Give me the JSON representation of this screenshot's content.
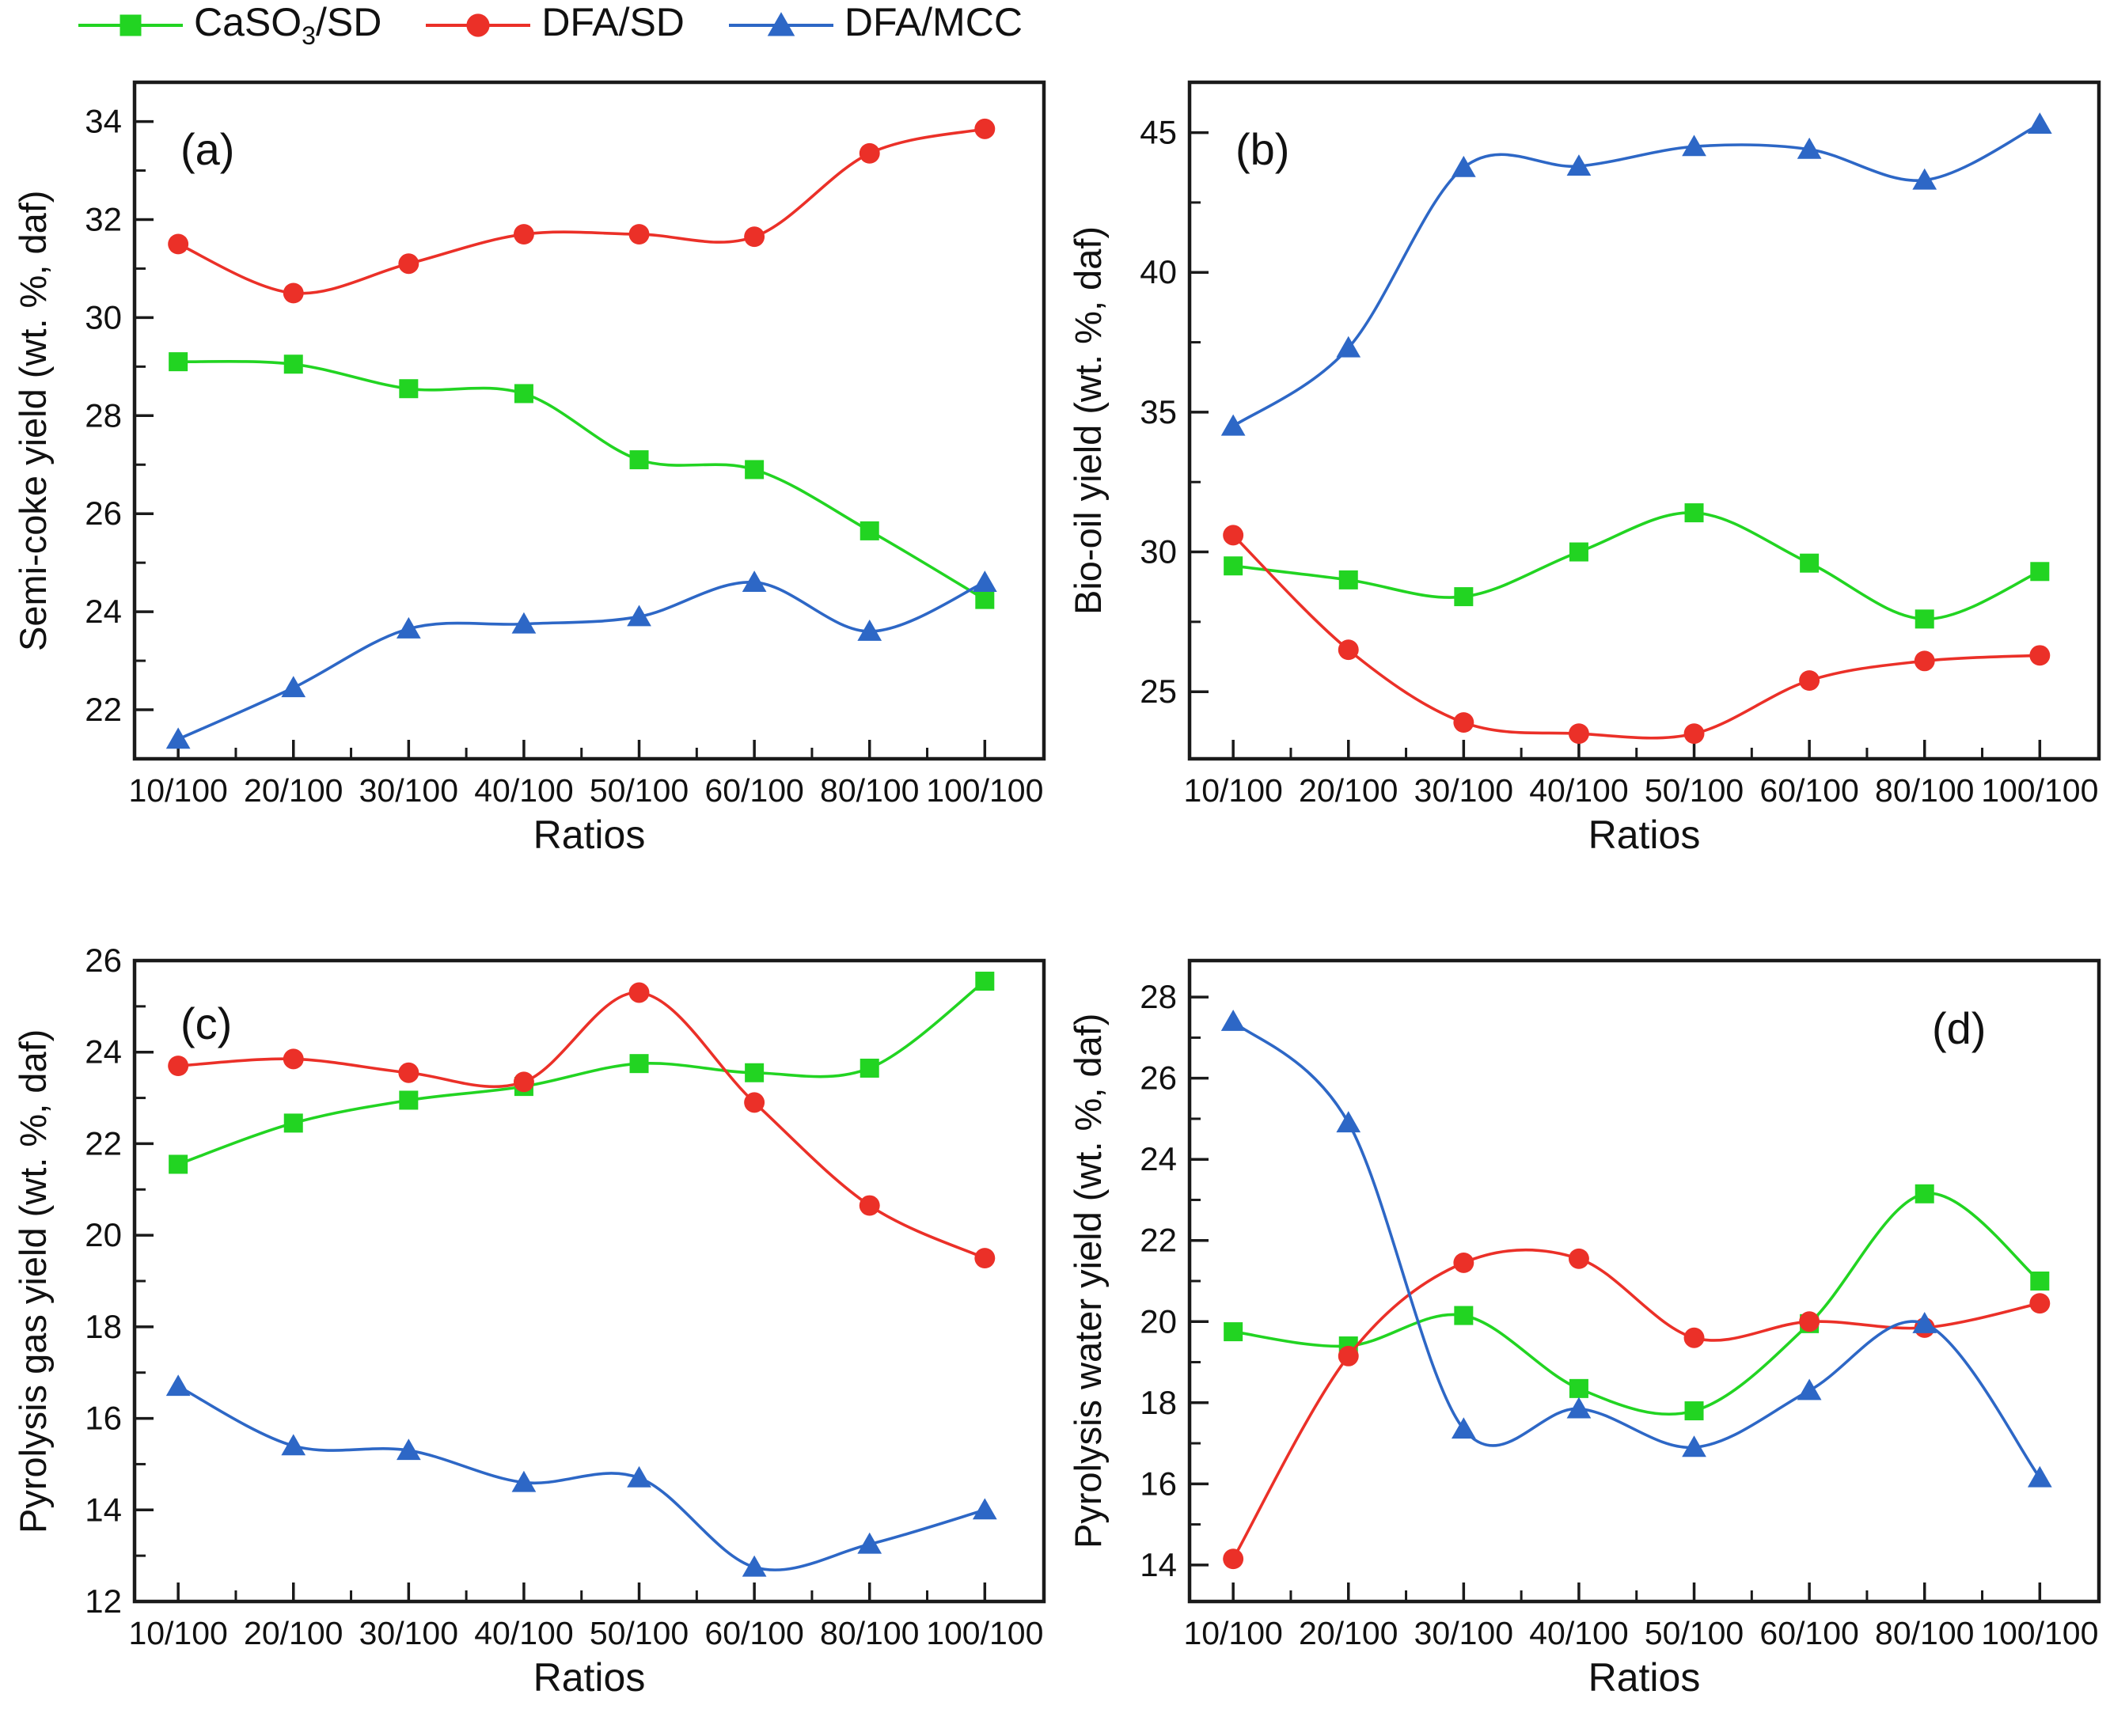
{
  "figure": {
    "background": "#ffffff",
    "frame_color": "#1a1a1a"
  },
  "legend": {
    "position": "top-left",
    "items": [
      {
        "label_pre": "CaSO",
        "label_sub": "3",
        "label_post": "/SD",
        "name": "CaSO3/SD",
        "color": "#22d422",
        "marker": "square"
      },
      {
        "label_pre": "DFA/SD",
        "label_sub": "",
        "label_post": "",
        "name": "DFA/SD",
        "color": "#eb3028",
        "marker": "circle"
      },
      {
        "label_pre": "DFA/MCC",
        "label_sub": "",
        "label_post": "",
        "name": "DFA/MCC",
        "color": "#2d67c6",
        "marker": "triangle"
      }
    ]
  },
  "chart_data": [
    {
      "type": "line",
      "panel_label": "(a)",
      "panel_label_pos": "top-left",
      "ylabel": "Semi-coke yield (wt. %, daf)",
      "xlabel": "Ratios",
      "categories": [
        "10/100",
        "20/100",
        "30/100",
        "40/100",
        "50/100",
        "60/100",
        "80/100",
        "100/100"
      ],
      "ylim": [
        21.0,
        34.8
      ],
      "yticks": {
        "min": 22,
        "max": 34,
        "step": 2
      },
      "grid": false,
      "series": [
        {
          "name": "CaSO3/SD",
          "marker": "square",
          "color": "#22d422",
          "values": [
            29.1,
            29.05,
            28.55,
            28.45,
            27.1,
            26.9,
            25.65,
            24.25
          ]
        },
        {
          "name": "DFA/SD",
          "marker": "circle",
          "color": "#eb3028",
          "values": [
            31.5,
            30.5,
            31.1,
            31.7,
            31.7,
            31.65,
            33.35,
            33.85
          ]
        },
        {
          "name": "DFA/MCC",
          "marker": "triangle",
          "color": "#2d67c6",
          "values": [
            21.4,
            22.45,
            23.65,
            23.75,
            23.9,
            24.6,
            23.6,
            24.6
          ]
        }
      ]
    },
    {
      "type": "line",
      "panel_label": "(b)",
      "panel_label_pos": "top-left",
      "ylabel": "Bio-oil yield (wt. %, daf)",
      "xlabel": "Ratios",
      "categories": [
        "10/100",
        "20/100",
        "30/100",
        "40/100",
        "50/100",
        "60/100",
        "80/100",
        "100/100"
      ],
      "ylim": [
        22.6,
        46.8
      ],
      "yticks": {
        "min": 25,
        "max": 45,
        "step": 5
      },
      "grid": false,
      "series": [
        {
          "name": "CaSO3/SD",
          "marker": "square",
          "color": "#22d422",
          "values": [
            29.5,
            29.0,
            28.4,
            30.0,
            31.4,
            29.6,
            27.6,
            29.3
          ]
        },
        {
          "name": "DFA/SD",
          "marker": "circle",
          "color": "#eb3028",
          "values": [
            30.6,
            26.5,
            23.9,
            23.5,
            23.5,
            25.4,
            26.1,
            26.3
          ]
        },
        {
          "name": "DFA/MCC",
          "marker": "triangle",
          "color": "#2d67c6",
          "values": [
            34.5,
            37.3,
            43.75,
            43.8,
            44.5,
            44.4,
            43.3,
            45.3
          ]
        }
      ]
    },
    {
      "type": "line",
      "panel_label": "(c)",
      "panel_label_pos": "top-left",
      "ylabel": "Pyrolysis gas yield (wt. %, daf)",
      "xlabel": "Ratios",
      "categories": [
        "10/100",
        "20/100",
        "30/100",
        "40/100",
        "50/100",
        "60/100",
        "80/100",
        "100/100"
      ],
      "ylim": [
        12.0,
        26.0
      ],
      "yticks": {
        "min": 12,
        "max": 26,
        "step": 2
      },
      "grid": false,
      "series": [
        {
          "name": "CaSO3/SD",
          "marker": "square",
          "color": "#22d422",
          "values": [
            21.55,
            22.45,
            22.95,
            23.25,
            23.75,
            23.55,
            23.65,
            25.55
          ]
        },
        {
          "name": "DFA/SD",
          "marker": "circle",
          "color": "#eb3028",
          "values": [
            23.7,
            23.85,
            23.55,
            23.35,
            25.3,
            22.9,
            20.65,
            19.5
          ]
        },
        {
          "name": "DFA/MCC",
          "marker": "triangle",
          "color": "#2d67c6",
          "values": [
            16.7,
            15.4,
            15.3,
            14.6,
            14.7,
            12.75,
            13.25,
            14.0
          ]
        }
      ]
    },
    {
      "type": "line",
      "panel_label": "(d)",
      "panel_label_pos": "top-right",
      "ylabel": "Pyrolysis water yield (wt. %, daf)",
      "xlabel": "Ratios",
      "categories": [
        "10/100",
        "20/100",
        "30/100",
        "40/100",
        "50/100",
        "60/100",
        "80/100",
        "100/100"
      ],
      "ylim": [
        13.1,
        28.9
      ],
      "yticks": {
        "min": 14,
        "max": 28,
        "step": 2
      },
      "grid": false,
      "series": [
        {
          "name": "CaSO3/SD",
          "marker": "square",
          "color": "#22d422",
          "values": [
            19.75,
            19.4,
            20.15,
            18.35,
            17.8,
            19.95,
            23.15,
            21.0
          ]
        },
        {
          "name": "DFA/SD",
          "marker": "circle",
          "color": "#eb3028",
          "values": [
            14.15,
            19.15,
            21.45,
            21.55,
            19.6,
            20.0,
            19.85,
            20.45
          ]
        },
        {
          "name": "DFA/MCC",
          "marker": "triangle",
          "color": "#2d67c6",
          "values": [
            27.4,
            24.9,
            17.35,
            17.85,
            16.9,
            18.3,
            19.95,
            16.15
          ]
        }
      ]
    }
  ]
}
